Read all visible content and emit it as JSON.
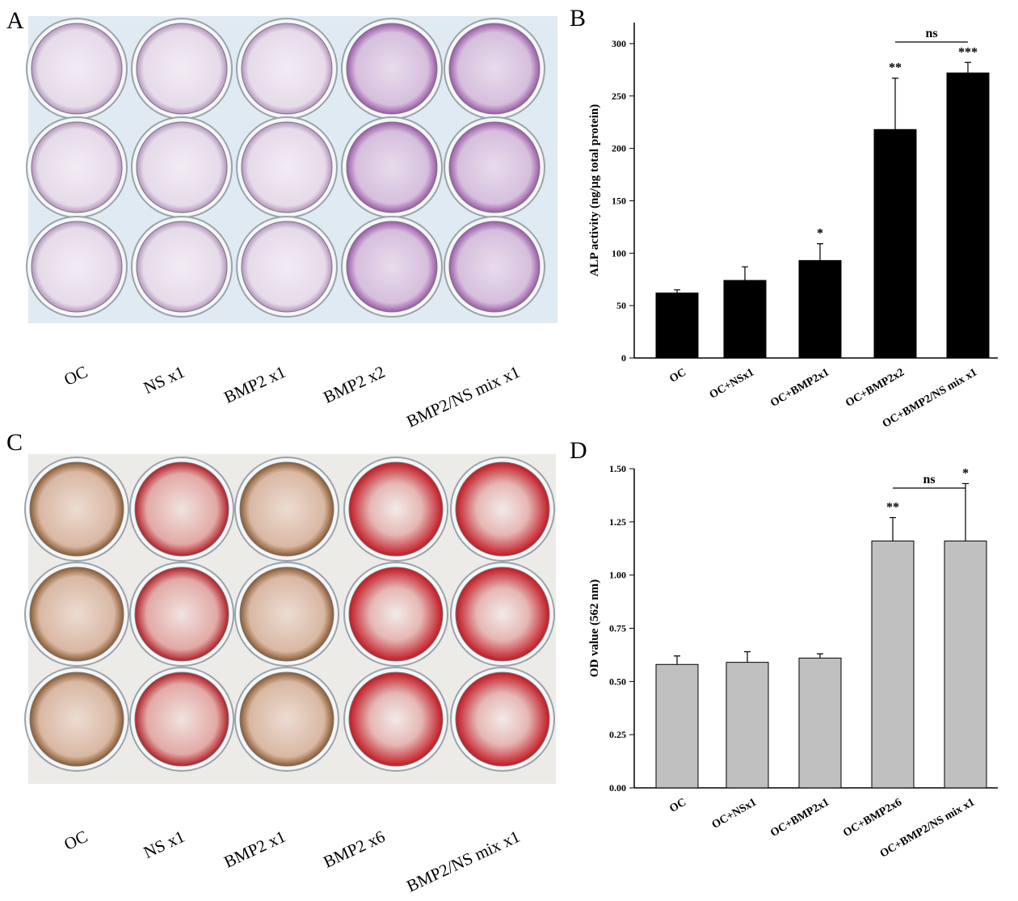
{
  "photos": [
    {
      "label": "A",
      "captions": [
        "OC",
        "NS x1",
        "BMP2 x1",
        "BMP2 x2",
        "BMP2/NS mix x1"
      ]
    },
    {
      "label": "C",
      "captions": [
        "OC",
        "NS x1",
        "BMP2 x1",
        "BMP2 x6",
        "BMP2/NS mix x1"
      ]
    }
  ],
  "chart_data": [
    {
      "type": "bar",
      "panel": "B",
      "y_label": "ALP activity (ng/µg total protein)",
      "categories": [
        "OC",
        "OC+NSx1",
        "OC+BMP2x1",
        "OC+BMP2x2",
        "OC+BMP2/NS mix x1"
      ],
      "values": [
        62,
        74,
        93,
        218,
        272
      ],
      "errors": [
        3,
        13,
        16,
        49,
        10
      ],
      "significance": [
        null,
        null,
        "*",
        "**",
        "***"
      ],
      "bracket_label": "ns",
      "color": "#000000",
      "ylim": [
        0,
        320
      ],
      "yticks": [
        0,
        50,
        100,
        150,
        200,
        250,
        300
      ]
    },
    {
      "type": "bar",
      "panel": "D",
      "y_label": "OD value (562 nm)",
      "categories": [
        "OC",
        "OC+NSx1",
        "OC+BMP2x1",
        "OC+BMP2x6",
        "OC+BMP2/NS mix x1"
      ],
      "values": [
        0.58,
        0.59,
        0.61,
        1.16,
        1.16
      ],
      "errors": [
        0.04,
        0.05,
        0.02,
        0.11,
        0.27
      ],
      "significance": [
        null,
        null,
        null,
        "**",
        "*"
      ],
      "bracket_label": "ns",
      "color": "#c0c0c0",
      "ylim": [
        0,
        1.5
      ],
      "yticks": [
        {
          "value": 0,
          "label": "0.00"
        },
        {
          "value": 0.25,
          "label": "0.25"
        },
        {
          "value": 0.5,
          "label": "0.50"
        },
        {
          "value": 0.75,
          "label": "0.75"
        },
        {
          "value": 1,
          "label": "1.00"
        },
        {
          "value": 1.25,
          "label": "1.25"
        },
        {
          "value": 1.5,
          "label": "1.50"
        }
      ]
    }
  ]
}
